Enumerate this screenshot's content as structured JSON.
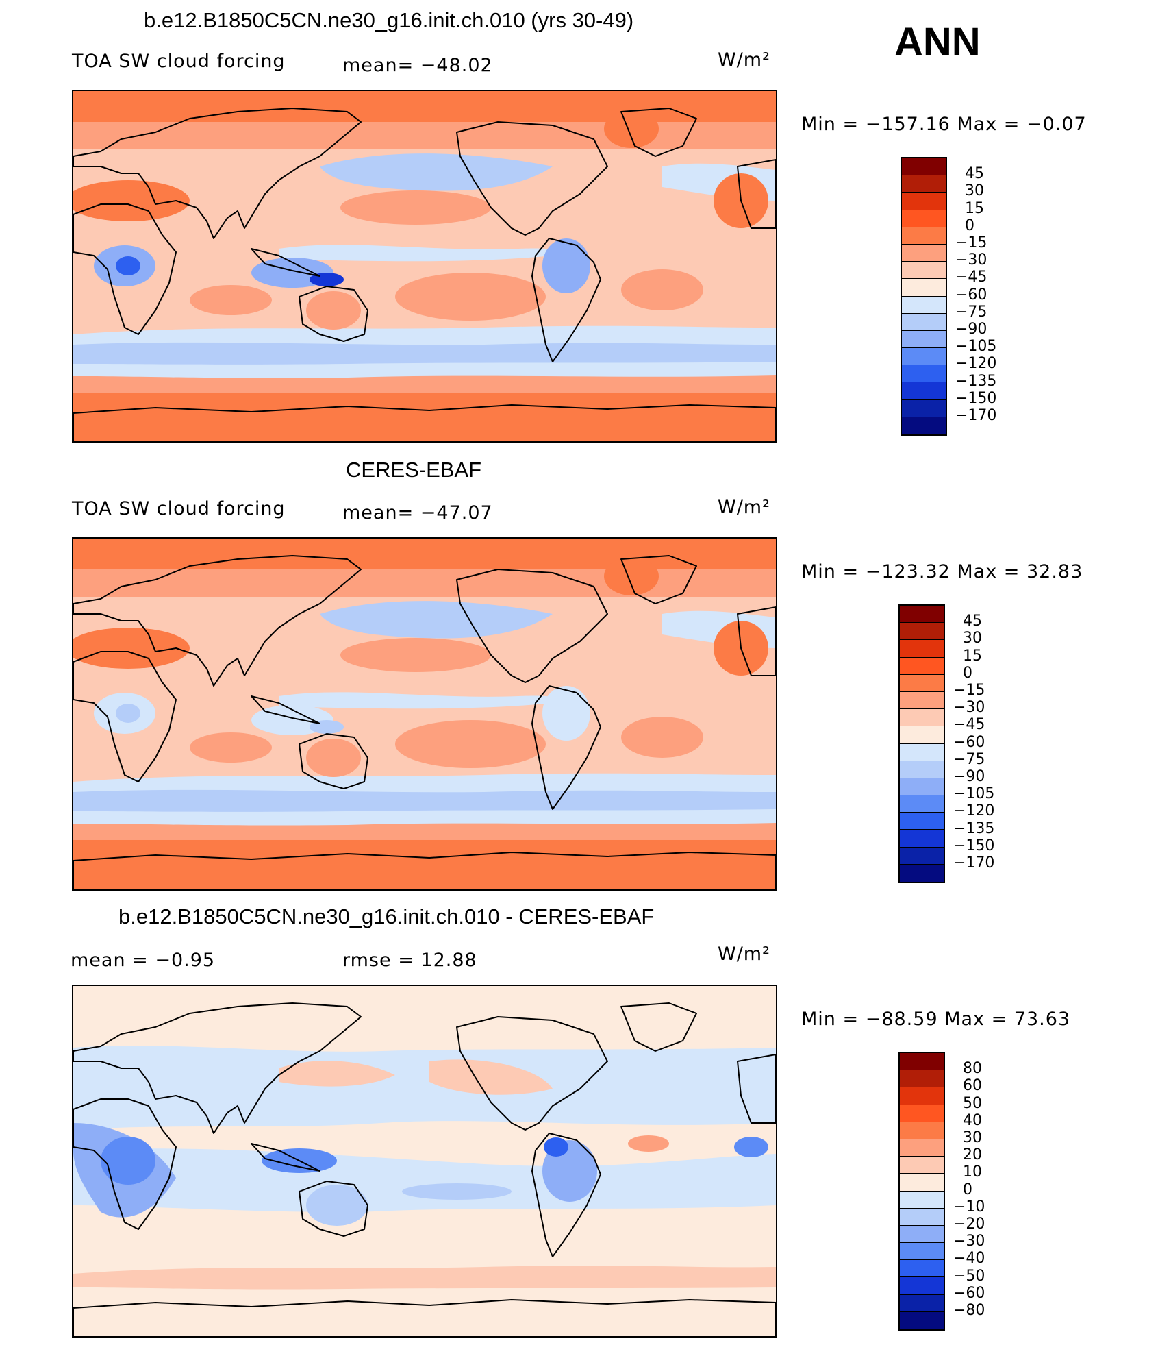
{
  "season": "ANN",
  "colors": {
    "scale_a": [
      "#800000",
      "#b11e07",
      "#e2340c",
      "#ff5621",
      "#fc7b46",
      "#fda07e",
      "#fdcab4",
      "#fdebdd",
      "#d4e6fb",
      "#b4cdf9",
      "#8eaef7",
      "#5c8bf6",
      "#2d60f0",
      "#1436d6",
      "#0a22a8",
      "#040b80"
    ],
    "scale_b": [
      "#800000",
      "#b11e07",
      "#e2340c",
      "#ff5621",
      "#fc7b46",
      "#fda07e",
      "#fdcab4",
      "#fdebdd",
      "#d4e6fb",
      "#b4cdf9",
      "#8eaef7",
      "#5c8bf6",
      "#2d60f0",
      "#1436d6",
      "#0a22a8",
      "#040b80"
    ],
    "land_outline": "#000000"
  },
  "panels": [
    {
      "title": "b.e12.B1850C5CN.ne30_g16.init.ch.010 (yrs 30-49)",
      "left": "TOA SW cloud forcing",
      "center": "mean=  −48.02",
      "units": "W/m²",
      "minmax": "Min  =  −157.16  Max  =    −0.07",
      "ticks": [
        "45",
        "30",
        "15",
        "0",
        "−15",
        "−30",
        "−45",
        "−60",
        "−75",
        "−90",
        "−105",
        "−120",
        "−135",
        "−150",
        "−170"
      ]
    },
    {
      "title": "CERES-EBAF",
      "left": "TOA SW cloud forcing",
      "center": "mean=  −47.07",
      "units": "W/m²",
      "minmax": "Min  =  −123.32  Max  =    32.83",
      "ticks": [
        "45",
        "30",
        "15",
        "0",
        "−15",
        "−30",
        "−45",
        "−60",
        "−75",
        "−90",
        "−105",
        "−120",
        "−135",
        "−150",
        "−170"
      ]
    },
    {
      "title": "b.e12.B1850C5CN.ne30_g16.init.ch.010 - CERES-EBAF",
      "left": "mean  =    −0.95",
      "center": "rmse  =    12.88",
      "units": "W/m²",
      "minmax": "Min  =  −88.59  Max  =    73.63",
      "ticks": [
        "80",
        "60",
        "50",
        "40",
        "30",
        "20",
        "10",
        "0",
        "−10",
        "−20",
        "−30",
        "−40",
        "−50",
        "−60",
        "−80"
      ]
    }
  ]
}
